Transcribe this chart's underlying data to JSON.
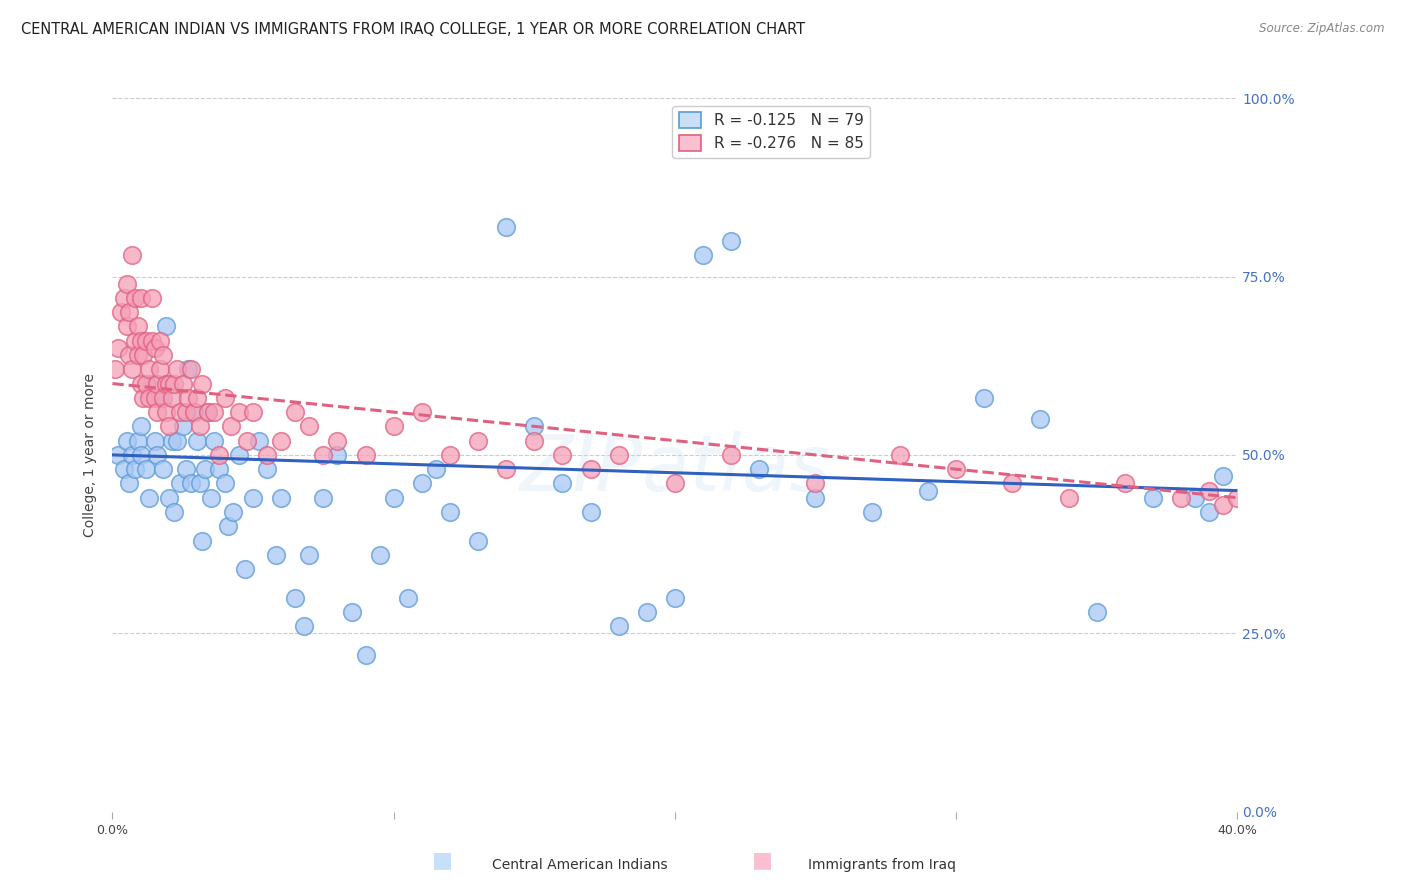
{
  "title": "CENTRAL AMERICAN INDIAN VS IMMIGRANTS FROM IRAQ COLLEGE, 1 YEAR OR MORE CORRELATION CHART",
  "source": "Source: ZipAtlas.com",
  "ylabel": "College, 1 year or more",
  "xlim": [
    0.0,
    0.4
  ],
  "ylim": [
    0.0,
    1.0
  ],
  "legend_r1": "-0.125",
  "legend_n1": "79",
  "legend_r2": "-0.276",
  "legend_n2": "85",
  "watermark": "ZIPatlas",
  "series1_color": "#a8c8f5",
  "series2_color": "#f5a0b8",
  "series1_edge": "#5b9bd5",
  "series2_edge": "#e06080",
  "line1_color": "#3060c0",
  "line2_color": "#e06080",
  "right_tick_color": "#4472c4",
  "legend_fill1": "#c8dff8",
  "legend_fill2": "#f8c0d0",
  "bottom_label1": "Central American Indians",
  "bottom_label2": "Immigrants from Iraq",
  "series1_x": [
    0.002,
    0.004,
    0.005,
    0.006,
    0.007,
    0.008,
    0.009,
    0.01,
    0.01,
    0.012,
    0.013,
    0.014,
    0.015,
    0.016,
    0.017,
    0.018,
    0.019,
    0.02,
    0.021,
    0.022,
    0.023,
    0.024,
    0.025,
    0.026,
    0.027,
    0.028,
    0.029,
    0.03,
    0.031,
    0.032,
    0.033,
    0.034,
    0.035,
    0.036,
    0.038,
    0.04,
    0.041,
    0.043,
    0.045,
    0.047,
    0.05,
    0.052,
    0.055,
    0.058,
    0.06,
    0.065,
    0.068,
    0.07,
    0.075,
    0.08,
    0.085,
    0.09,
    0.095,
    0.1,
    0.105,
    0.11,
    0.115,
    0.12,
    0.13,
    0.14,
    0.15,
    0.16,
    0.17,
    0.18,
    0.19,
    0.2,
    0.21,
    0.22,
    0.23,
    0.25,
    0.27,
    0.29,
    0.31,
    0.33,
    0.35,
    0.37,
    0.385,
    0.39,
    0.395
  ],
  "series1_y": [
    0.5,
    0.48,
    0.52,
    0.46,
    0.5,
    0.48,
    0.52,
    0.54,
    0.5,
    0.48,
    0.44,
    0.6,
    0.52,
    0.5,
    0.58,
    0.48,
    0.68,
    0.44,
    0.52,
    0.42,
    0.52,
    0.46,
    0.54,
    0.48,
    0.62,
    0.46,
    0.56,
    0.52,
    0.46,
    0.38,
    0.48,
    0.56,
    0.44,
    0.52,
    0.48,
    0.46,
    0.4,
    0.42,
    0.5,
    0.34,
    0.44,
    0.52,
    0.48,
    0.36,
    0.44,
    0.3,
    0.26,
    0.36,
    0.44,
    0.5,
    0.28,
    0.22,
    0.36,
    0.44,
    0.3,
    0.46,
    0.48,
    0.42,
    0.38,
    0.82,
    0.54,
    0.46,
    0.42,
    0.26,
    0.28,
    0.3,
    0.78,
    0.8,
    0.48,
    0.44,
    0.42,
    0.45,
    0.58,
    0.55,
    0.28,
    0.44,
    0.44,
    0.42,
    0.47
  ],
  "series2_x": [
    0.001,
    0.002,
    0.003,
    0.004,
    0.005,
    0.005,
    0.006,
    0.006,
    0.007,
    0.007,
    0.008,
    0.008,
    0.009,
    0.009,
    0.01,
    0.01,
    0.01,
    0.011,
    0.011,
    0.012,
    0.012,
    0.013,
    0.013,
    0.014,
    0.014,
    0.015,
    0.015,
    0.016,
    0.016,
    0.017,
    0.017,
    0.018,
    0.018,
    0.019,
    0.019,
    0.02,
    0.02,
    0.021,
    0.022,
    0.023,
    0.024,
    0.025,
    0.026,
    0.027,
    0.028,
    0.029,
    0.03,
    0.031,
    0.032,
    0.034,
    0.036,
    0.038,
    0.04,
    0.042,
    0.045,
    0.048,
    0.05,
    0.055,
    0.06,
    0.065,
    0.07,
    0.075,
    0.08,
    0.09,
    0.1,
    0.11,
    0.12,
    0.13,
    0.14,
    0.15,
    0.16,
    0.17,
    0.18,
    0.2,
    0.22,
    0.25,
    0.28,
    0.3,
    0.32,
    0.34,
    0.36,
    0.38,
    0.39,
    0.395,
    0.4
  ],
  "series2_y": [
    0.62,
    0.65,
    0.7,
    0.72,
    0.68,
    0.74,
    0.64,
    0.7,
    0.62,
    0.78,
    0.66,
    0.72,
    0.64,
    0.68,
    0.6,
    0.66,
    0.72,
    0.58,
    0.64,
    0.6,
    0.66,
    0.62,
    0.58,
    0.66,
    0.72,
    0.58,
    0.65,
    0.6,
    0.56,
    0.62,
    0.66,
    0.58,
    0.64,
    0.6,
    0.56,
    0.6,
    0.54,
    0.58,
    0.6,
    0.62,
    0.56,
    0.6,
    0.56,
    0.58,
    0.62,
    0.56,
    0.58,
    0.54,
    0.6,
    0.56,
    0.56,
    0.5,
    0.58,
    0.54,
    0.56,
    0.52,
    0.56,
    0.5,
    0.52,
    0.56,
    0.54,
    0.5,
    0.52,
    0.5,
    0.54,
    0.56,
    0.5,
    0.52,
    0.48,
    0.52,
    0.5,
    0.48,
    0.5,
    0.46,
    0.5,
    0.46,
    0.5,
    0.48,
    0.46,
    0.44,
    0.46,
    0.44,
    0.45,
    0.43,
    0.44
  ]
}
